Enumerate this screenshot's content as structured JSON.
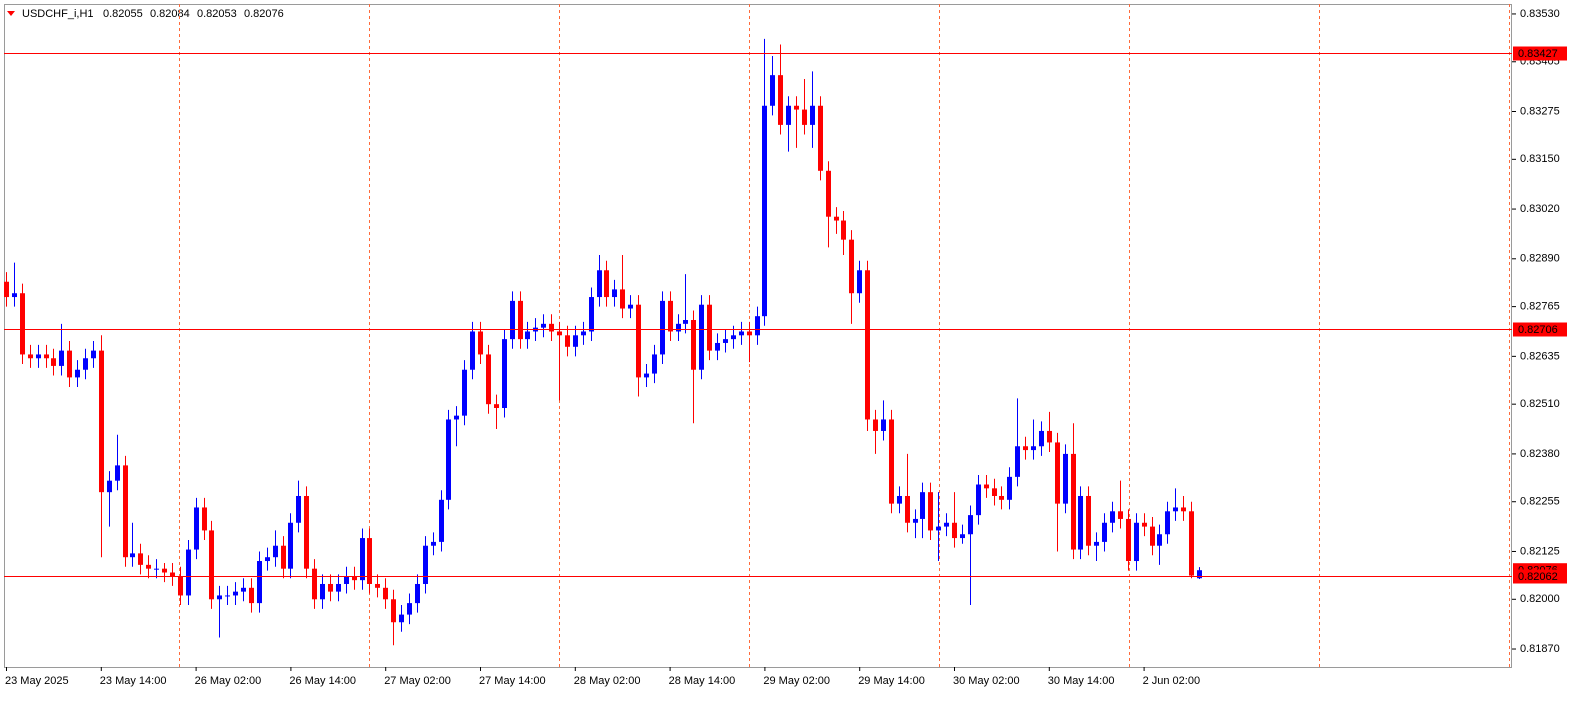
{
  "chart_data": {
    "type": "candlestick",
    "title": "USDCHF_i,H1",
    "categories": [
      "23 May 2025",
      null,
      null,
      null,
      null,
      null,
      null,
      null,
      null,
      null,
      null,
      null,
      "23 May 14:00",
      null,
      null,
      null,
      null,
      null,
      null,
      null,
      null,
      null,
      null,
      null,
      "26 May 02:00",
      null,
      null,
      null,
      null,
      null,
      null,
      null,
      null,
      null,
      null,
      null,
      "26 May 14:00",
      null,
      null,
      null,
      null,
      null,
      null,
      null,
      null,
      null,
      null,
      null,
      "27 May 02:00",
      null,
      null,
      null,
      null,
      null,
      null,
      null,
      null,
      null,
      null,
      null,
      "27 May 14:00",
      null,
      null,
      null,
      null,
      null,
      null,
      null,
      null,
      null,
      null,
      null,
      "28 May 02:00",
      null,
      null,
      null,
      null,
      null,
      null,
      null,
      null,
      null,
      null,
      null,
      "28 May 14:00",
      null,
      null,
      null,
      null,
      null,
      null,
      null,
      null,
      null,
      null,
      null,
      "29 May 02:00",
      null,
      null,
      null,
      null,
      null,
      null,
      null,
      null,
      null,
      null,
      null,
      "29 May 14:00",
      null,
      null,
      null,
      null,
      null,
      null,
      null,
      null,
      null,
      null,
      null,
      "30 May 02:00",
      null,
      null,
      null,
      null,
      null,
      null,
      null,
      null,
      null,
      null,
      null,
      "30 May 14:00",
      null,
      null,
      null,
      null,
      null,
      null,
      null,
      null,
      null,
      null,
      null,
      "2 Jun 02:00",
      null,
      null,
      null,
      null,
      null,
      null,
      null
    ],
    "open": [
      0.8283,
      0.8279,
      0.828,
      0.8264,
      0.8263,
      0.8264,
      0.8263,
      0.8261,
      0.8265,
      0.8258,
      0.826,
      0.8263,
      0.8265,
      0.8228,
      0.8231,
      0.8235,
      0.8211,
      0.8212,
      0.8209,
      0.8208,
      0.8208,
      0.8207,
      0.8206,
      0.8201,
      0.8213,
      0.8224,
      0.8218,
      0.82,
      0.8201,
      0.8201,
      0.8202,
      0.8203,
      0.8199,
      0.821,
      0.8211,
      0.8214,
      0.8208,
      0.822,
      0.8227,
      0.8208,
      0.82,
      0.8204,
      0.8202,
      0.8204,
      0.8206,
      0.8205,
      0.8216,
      0.8204,
      0.8203,
      0.82,
      0.8194,
      0.8196,
      0.8199,
      0.8204,
      0.8214,
      0.8215,
      0.8226,
      0.8247,
      0.8248,
      0.826,
      0.827,
      0.8264,
      0.8251,
      0.825,
      0.8268,
      0.8278,
      0.8268,
      0.827,
      0.8271,
      0.8272,
      0.827,
      0.8269,
      0.8266,
      0.8269,
      0.827,
      0.8279,
      0.8286,
      0.8279,
      0.8281,
      0.8276,
      0.8277,
      0.8258,
      0.8259,
      0.8264,
      0.8278,
      0.827,
      0.8272,
      0.8273,
      0.826,
      0.8277,
      0.8265,
      0.8267,
      0.8268,
      0.8269,
      0.827,
      0.8269,
      0.8274,
      0.8329,
      0.8337,
      0.8324,
      0.8329,
      0.8328,
      0.8324,
      0.8329,
      0.8312,
      0.83,
      0.8299,
      0.8294,
      0.828,
      0.8286,
      0.8247,
      0.8244,
      0.8247,
      0.8225,
      0.8227,
      0.822,
      0.8221,
      0.8228,
      0.8218,
      0.8219,
      0.822,
      0.8216,
      0.8217,
      0.8222,
      0.823,
      0.8229,
      0.8227,
      0.8226,
      0.8232,
      0.824,
      0.8239,
      0.824,
      0.8244,
      0.8241,
      0.8225,
      0.8238,
      0.8213,
      0.8227,
      0.8214,
      0.8215,
      0.822,
      0.8223,
      0.8221,
      0.821,
      0.822,
      0.8219,
      0.8214,
      0.8217,
      0.8223,
      0.8224,
      0.8223,
      0.82055
    ],
    "high": [
      0.82855,
      0.8288,
      0.82825,
      0.82665,
      0.82665,
      0.82665,
      0.82655,
      0.8272,
      0.82675,
      0.82625,
      0.82655,
      0.82675,
      0.8269,
      0.82335,
      0.8243,
      0.82375,
      0.822,
      0.82145,
      0.82115,
      0.82105,
      0.82095,
      0.82095,
      0.82085,
      0.82155,
      0.82265,
      0.82265,
      0.82205,
      0.82035,
      0.82035,
      0.82045,
      0.82055,
      0.82055,
      0.82125,
      0.82135,
      0.8218,
      0.82165,
      0.82225,
      0.8231,
      0.82295,
      0.82105,
      0.82065,
      0.82065,
      0.82065,
      0.82085,
      0.82085,
      0.82185,
      0.82185,
      0.82065,
      0.82055,
      0.82025,
      0.81985,
      0.82015,
      0.82065,
      0.82165,
      0.82175,
      0.82285,
      0.82495,
      0.82505,
      0.82625,
      0.82725,
      0.82725,
      0.82665,
      0.82535,
      0.82705,
      0.82805,
      0.82805,
      0.82725,
      0.82735,
      0.82745,
      0.82745,
      0.82725,
      0.82715,
      0.82715,
      0.82725,
      0.82815,
      0.829,
      0.82885,
      0.82835,
      0.829,
      0.82795,
      0.82795,
      0.82615,
      0.82665,
      0.82805,
      0.82805,
      0.82745,
      0.8285,
      0.82755,
      0.82795,
      0.82795,
      0.82695,
      0.82705,
      0.82715,
      0.82725,
      0.82725,
      0.82765,
      0.83465,
      0.8342,
      0.8345,
      0.83315,
      0.83315,
      0.8336,
      0.8338,
      0.83315,
      0.83145,
      0.83025,
      0.83015,
      0.82965,
      0.82885,
      0.82885,
      0.82495,
      0.8252,
      0.82495,
      0.82295,
      0.8238,
      0.82235,
      0.82305,
      0.82305,
      0.8228,
      0.82225,
      0.8228,
      0.82195,
      0.82245,
      0.82325,
      0.82325,
      0.82315,
      0.82295,
      0.82345,
      0.82525,
      0.82425,
      0.8247,
      0.82465,
      0.8249,
      0.82435,
      0.82405,
      0.8246,
      0.82295,
      0.82295,
      0.82175,
      0.82225,
      0.82255,
      0.8231,
      0.82235,
      0.82225,
      0.82225,
      0.82215,
      0.82195,
      0.82255,
      0.8229,
      0.8227,
      0.82255,
      0.82084
    ],
    "low": [
      0.82765,
      0.82765,
      0.82615,
      0.82605,
      0.82605,
      0.82605,
      0.82585,
      0.82585,
      0.82555,
      0.82555,
      0.82575,
      0.82605,
      0.8211,
      0.8219,
      0.82285,
      0.82085,
      0.82085,
      0.82065,
      0.82055,
      0.82055,
      0.82045,
      0.82035,
      0.81985,
      0.81985,
      0.82105,
      0.82155,
      0.81975,
      0.819,
      0.81985,
      0.81985,
      0.81995,
      0.81965,
      0.81965,
      0.82075,
      0.82085,
      0.82055,
      0.82055,
      0.82175,
      0.82055,
      0.81975,
      0.81975,
      0.81995,
      0.81995,
      0.82015,
      0.82025,
      0.82025,
      0.82015,
      0.82005,
      0.81975,
      0.8188,
      0.81915,
      0.81935,
      0.81965,
      0.82015,
      0.82115,
      0.82125,
      0.82235,
      0.824,
      0.82455,
      0.82575,
      0.82615,
      0.82485,
      0.82445,
      0.82475,
      0.82655,
      0.82655,
      0.82655,
      0.82675,
      0.82685,
      0.82675,
      0.8252,
      0.82635,
      0.82635,
      0.82665,
      0.82675,
      0.82765,
      0.82765,
      0.82765,
      0.82735,
      0.82735,
      0.8253,
      0.82555,
      0.82565,
      0.82615,
      0.82675,
      0.82675,
      0.82695,
      0.8246,
      0.82575,
      0.82625,
      0.82625,
      0.82645,
      0.82655,
      0.82665,
      0.8262,
      0.82665,
      0.82715,
      0.83265,
      0.83215,
      0.8317,
      0.8318,
      0.83215,
      0.8318,
      0.83095,
      0.8292,
      0.82955,
      0.829,
      0.8272,
      0.82775,
      0.8244,
      0.8238,
      0.82415,
      0.82225,
      0.82225,
      0.82175,
      0.8216,
      0.8216,
      0.82155,
      0.821,
      0.82165,
      0.82135,
      0.82145,
      0.81985,
      0.82195,
      0.82265,
      0.82245,
      0.82235,
      0.82235,
      0.82295,
      0.82365,
      0.82365,
      0.82375,
      0.82385,
      0.82125,
      0.82225,
      0.82105,
      0.82105,
      0.82115,
      0.821,
      0.82125,
      0.82175,
      0.82185,
      0.82075,
      0.82075,
      0.82165,
      0.82115,
      0.8209,
      0.82145,
      0.82205,
      0.82205,
      0.82055,
      0.82053
    ],
    "close": [
      0.8279,
      0.828,
      0.8264,
      0.8263,
      0.8264,
      0.8263,
      0.8261,
      0.8265,
      0.8258,
      0.826,
      0.8263,
      0.8265,
      0.8228,
      0.8231,
      0.8235,
      0.8211,
      0.8212,
      0.8209,
      0.8208,
      0.8208,
      0.8207,
      0.8206,
      0.8201,
      0.8213,
      0.8224,
      0.8218,
      0.82,
      0.8201,
      0.8201,
      0.8202,
      0.8203,
      0.8199,
      0.821,
      0.8211,
      0.8214,
      0.8208,
      0.822,
      0.8227,
      0.8208,
      0.82,
      0.8204,
      0.8202,
      0.8204,
      0.8206,
      0.8205,
      0.8216,
      0.8204,
      0.8203,
      0.82,
      0.8194,
      0.8196,
      0.8199,
      0.8204,
      0.8214,
      0.8215,
      0.8226,
      0.8247,
      0.8248,
      0.826,
      0.827,
      0.8264,
      0.8251,
      0.825,
      0.8268,
      0.8278,
      0.8268,
      0.827,
      0.8271,
      0.8272,
      0.827,
      0.8269,
      0.8266,
      0.8269,
      0.827,
      0.8279,
      0.8286,
      0.8279,
      0.8281,
      0.8276,
      0.8277,
      0.8258,
      0.8259,
      0.8264,
      0.8278,
      0.827,
      0.8272,
      0.8273,
      0.826,
      0.8277,
      0.8265,
      0.8267,
      0.8268,
      0.8269,
      0.827,
      0.8269,
      0.8274,
      0.8329,
      0.8337,
      0.8324,
      0.8329,
      0.8328,
      0.8324,
      0.8329,
      0.8312,
      0.83,
      0.8299,
      0.8294,
      0.828,
      0.8286,
      0.8247,
      0.8244,
      0.8247,
      0.8225,
      0.8227,
      0.822,
      0.8221,
      0.8228,
      0.8218,
      0.8219,
      0.822,
      0.8216,
      0.8217,
      0.8222,
      0.823,
      0.8229,
      0.8227,
      0.8226,
      0.8232,
      0.824,
      0.8239,
      0.824,
      0.8244,
      0.8241,
      0.8225,
      0.8238,
      0.8213,
      0.8227,
      0.8214,
      0.8215,
      0.822,
      0.8223,
      0.8221,
      0.821,
      0.822,
      0.8219,
      0.8214,
      0.8217,
      0.8223,
      0.8224,
      0.8223,
      0.82062,
      0.82076
    ],
    "up_color": "#0000ff",
    "down_color": "#ff0000",
    "levels": [
      0.83427,
      0.82706,
      0.82062
    ],
    "level_color": "#ff0000",
    "ylim": [
      0.81823,
      0.83556
    ],
    "yticks": [
      {
        "value": 0.8353,
        "label": "0.83530"
      },
      0.83405,
      0.83275,
      {
        "value": 0.8315,
        "label": "0.83150"
      },
      {
        "value": 0.8302,
        "label": "0.83020"
      },
      {
        "value": 0.8289,
        "label": "0.82890"
      },
      0.82765,
      0.82635,
      {
        "value": 0.8251,
        "label": "0.82510"
      },
      {
        "value": 0.8238,
        "label": "0.82380"
      },
      0.82255,
      0.82125,
      {
        "value": 0.82,
        "label": "0.82000"
      },
      {
        "value": 0.8187,
        "label": "0.81870"
      }
    ],
    "grid": true
  }
}
